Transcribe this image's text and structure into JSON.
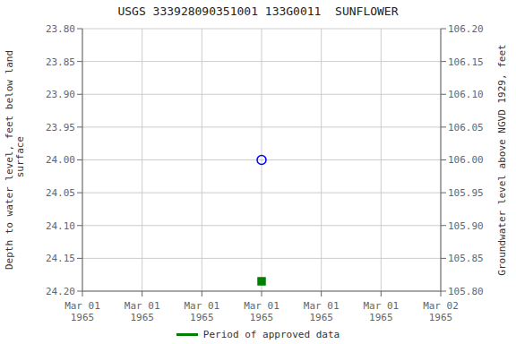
{
  "chart_data": {
    "type": "scatter",
    "title": "USGS 333928090351001 133G0011  SUNFLOWER",
    "y_label": "Depth to water level, feet below land\n surface",
    "y2_label": "Groundwater level above NGVD 1929, feet",
    "categories": [
      "Mar 01\n1965",
      "Mar 01\n1965",
      "Mar 01\n1965",
      "Mar 01\n1965",
      "Mar 01\n1965",
      "Mar 01\n1965",
      "Mar 02\n1965"
    ],
    "series": [
      {
        "color": "#0000ff",
        "marker": "open_circle",
        "values": [
          null,
          null,
          null,
          24.0,
          null,
          null,
          null
        ]
      },
      {
        "name": "Period of approved data",
        "color": "#008000",
        "marker": "square",
        "values": [
          null,
          null,
          null,
          24.185,
          null,
          null,
          null
        ]
      }
    ],
    "ylim": [
      24.2,
      23.8
    ],
    "yticks": [
      {
        "value": 23.8,
        "label": "23.80"
      },
      {
        "value": 23.85,
        "label": "23.85"
      },
      {
        "value": 23.9,
        "label": "23.90"
      },
      {
        "value": 23.95,
        "label": "23.95"
      },
      {
        "value": 24.0,
        "label": "24.00"
      },
      {
        "value": 24.05,
        "label": "24.05"
      },
      {
        "value": 24.1,
        "label": "24.10"
      },
      {
        "value": 24.15,
        "label": "24.15"
      },
      {
        "value": 24.2,
        "label": "24.20"
      }
    ],
    "y2lim": [
      105.8,
      106.2
    ],
    "y2ticks": [
      {
        "value": 105.8,
        "label": "105.80"
      },
      {
        "value": 105.85,
        "label": "105.85"
      },
      {
        "value": 105.9,
        "label": "105.90"
      },
      {
        "value": 105.95,
        "label": "105.95"
      },
      {
        "value": 106.0,
        "label": "106.00"
      },
      {
        "value": 106.05,
        "label": "106.05"
      },
      {
        "value": 106.1,
        "label": "106.10"
      },
      {
        "value": 106.15,
        "label": "106.15"
      },
      {
        "value": 106.2,
        "label": "106.20"
      }
    ],
    "grid": true,
    "legend": "bottom"
  }
}
